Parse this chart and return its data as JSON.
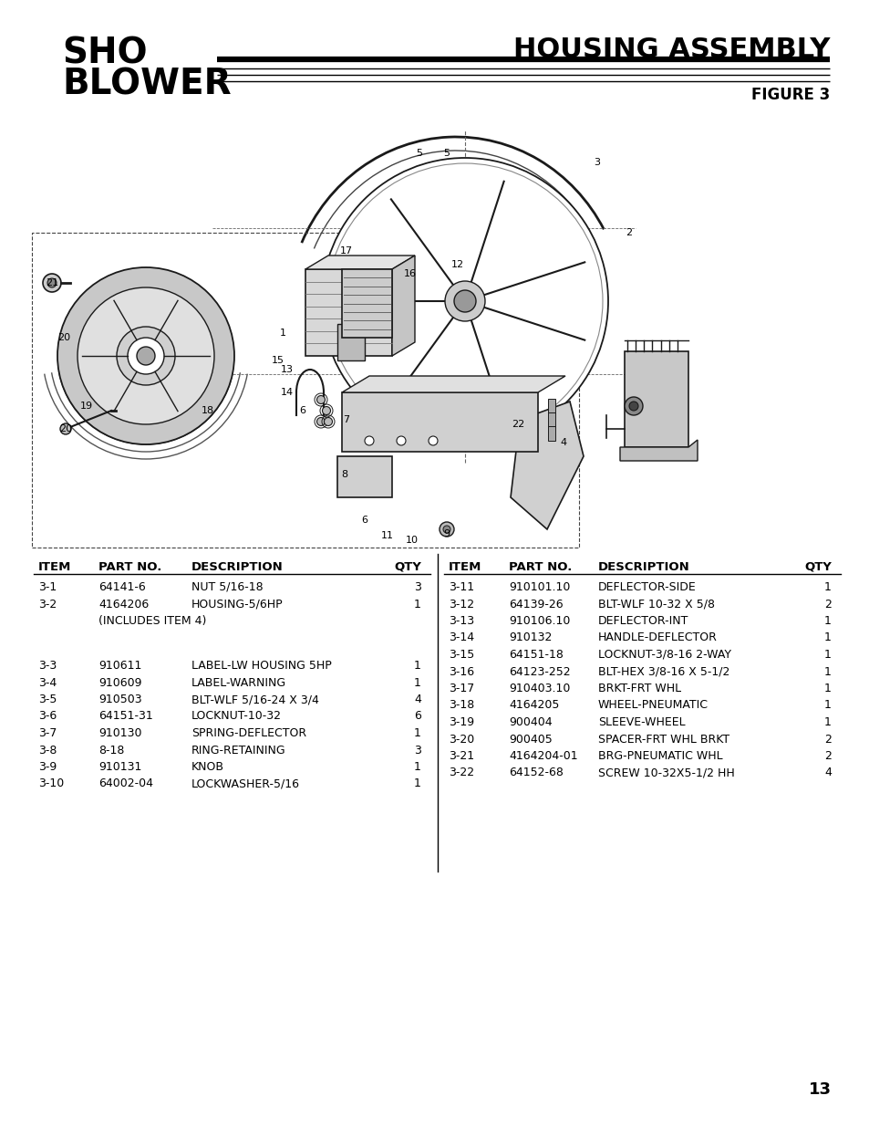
{
  "title_left_line1": "SHO",
  "title_left_line2": "BLOWER",
  "title_right": "HOUSING ASSEMBLY",
  "subtitle_right": "FIGURE 3",
  "page_number": "13",
  "left_rows": [
    [
      "3-1",
      "64141-6",
      "NUT 5/16-18",
      "3"
    ],
    [
      "3-2",
      "4164206",
      "HOUSING-5/6HP",
      "1"
    ],
    [
      "",
      "(INCLUDES ITEM 4)",
      "",
      ""
    ],
    [
      "",
      "",
      "",
      ""
    ],
    [
      "3-3",
      "910611",
      "LABEL-LW HOUSING 5HP",
      "1"
    ],
    [
      "3-4",
      "910609",
      "LABEL-WARNING",
      "1"
    ],
    [
      "3-5",
      "910503",
      "BLT-WLF 5/16-24 X 3/4",
      "4"
    ],
    [
      "3-6",
      "64151-31",
      "LOCKNUT-10-32",
      "6"
    ],
    [
      "3-7",
      "910130",
      "SPRING-DEFLECTOR",
      "1"
    ],
    [
      "3-8",
      "8-18",
      "RING-RETAINING",
      "3"
    ],
    [
      "3-9",
      "910131",
      "KNOB",
      "1"
    ],
    [
      "3-10",
      "64002-04",
      "LOCKWASHER-5/16",
      "1"
    ]
  ],
  "right_rows": [
    [
      "3-11",
      "910101.10",
      "DEFLECTOR-SIDE",
      "1"
    ],
    [
      "3-12",
      "64139-26",
      "BLT-WLF 10-32 X 5/8",
      "2"
    ],
    [
      "3-13",
      "910106.10",
      "DEFLECTOR-INT",
      "1"
    ],
    [
      "3-14",
      "910132",
      "HANDLE-DEFLECTOR",
      "1"
    ],
    [
      "3-15",
      "64151-18",
      "LOCKNUT-3/8-16 2-WAY",
      "1"
    ],
    [
      "3-16",
      "64123-252",
      "BLT-HEX 3/8-16 X 5-1/2",
      "1"
    ],
    [
      "3-17",
      "910403.10",
      "BRKT-FRT WHL",
      "1"
    ],
    [
      "3-18",
      "4164205",
      "WHEEL-PNEUMATIC",
      "1"
    ],
    [
      "3-19",
      "900404",
      "SLEEVE-WHEEL",
      "1"
    ],
    [
      "3-20",
      "900405",
      "SPACER-FRT WHL BRKT",
      "2"
    ],
    [
      "3-21",
      "4164204-01",
      "BRG-PNEUMATIC WHL",
      "2"
    ],
    [
      "3-22",
      "64152-68",
      "SCREW 10-32X5-1/2 HH",
      "4"
    ]
  ],
  "background_color": "#ffffff",
  "text_color": "#000000"
}
